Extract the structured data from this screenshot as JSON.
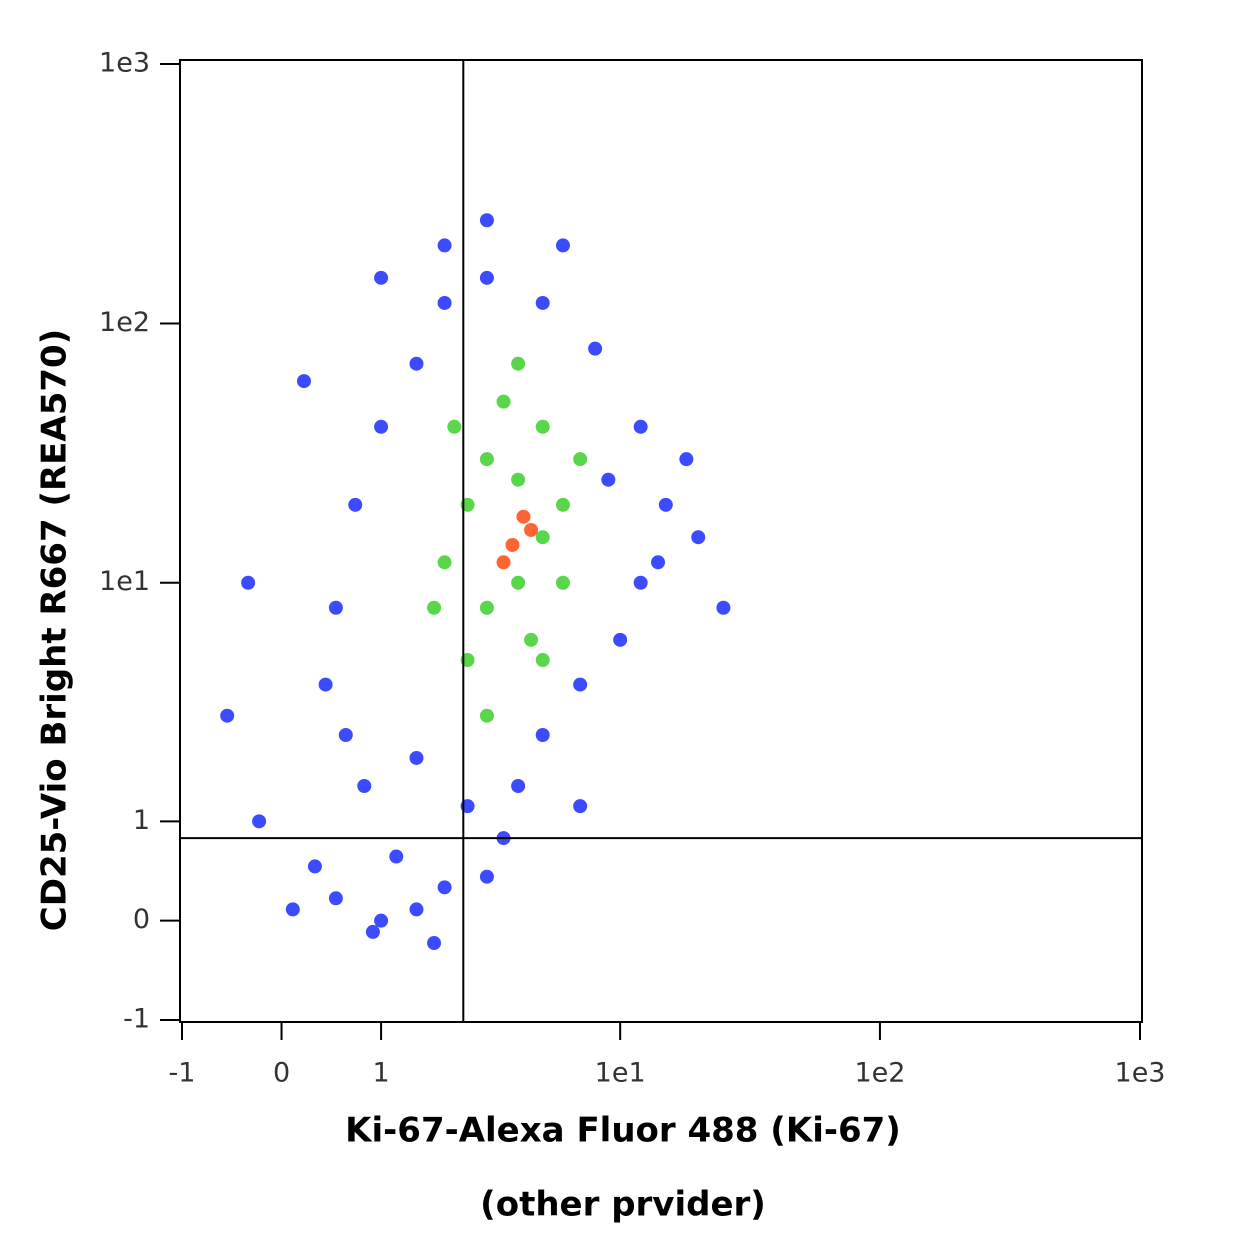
{
  "chart_data": {
    "type": "scatter",
    "xlabel": "Ki-67-Alexa Fluor 488 (Ki-67)",
    "xlabel_note": "(other prvider)",
    "ylabel": "CD25-Vio Bright R667 (REA570)",
    "xscale": "asinh",
    "yscale": "asinh",
    "xlim": [
      -1,
      1000
    ],
    "ylim": [
      -1,
      1000
    ],
    "xticks": [
      -1,
      0,
      1,
      {
        "value": 10,
        "label": "1e1"
      },
      {
        "value": 100,
        "label": "1e2"
      },
      {
        "value": 1000,
        "label": "1e3"
      }
    ],
    "yticks": [
      -1,
      0,
      1,
      {
        "value": 10,
        "label": "1e1"
      },
      {
        "value": 100,
        "label": "1e2"
      },
      {
        "value": 1000,
        "label": "1e3"
      }
    ],
    "gates": {
      "x": 2.4,
      "y": 0.8
    },
    "series": [
      {
        "color": "#1a2cff",
        "x": [
          0.5,
          1,
          1.5,
          0.3,
          1.2,
          2,
          3,
          0.8,
          1.5,
          2.5,
          4,
          5,
          7,
          10,
          12,
          15,
          12,
          8,
          5,
          3,
          2,
          1.5,
          1,
          0.7,
          0.5,
          0.4,
          0.6,
          9,
          14,
          20,
          6,
          3,
          2,
          1,
          0.2,
          -0.3,
          -0.5,
          -0.2,
          18,
          25,
          7,
          3.5,
          0.1,
          1.8,
          0.9
        ],
        "values": [
          0.2,
          0,
          0.1,
          0.5,
          0.6,
          0.3,
          0.4,
          1.5,
          2,
          1.2,
          1.5,
          2.5,
          4,
          6,
          10,
          20,
          40,
          80,
          120,
          150,
          120,
          70,
          40,
          20,
          8,
          4,
          2.5,
          25,
          12,
          15,
          200,
          250,
          200,
          150,
          60,
          10,
          3,
          1,
          30,
          8,
          1.2,
          0.8,
          0.1,
          -0.2,
          -0.1
        ]
      },
      {
        "color": "#3ccf2a",
        "x": [
          2.5,
          3,
          4,
          5,
          4,
          3,
          2.5,
          3.5,
          5,
          6,
          6,
          4.5,
          2,
          1.8,
          3,
          5,
          7,
          2.2,
          4
        ],
        "values": [
          5,
          8,
          10,
          15,
          25,
          30,
          20,
          50,
          40,
          20,
          10,
          6,
          12,
          8,
          3,
          5,
          30,
          40,
          70
        ]
      },
      {
        "color": "#ff4a10",
        "x": [
          3.8,
          4.2,
          3.5,
          4.5
        ],
        "values": [
          14,
          18,
          12,
          16
        ]
      }
    ]
  }
}
